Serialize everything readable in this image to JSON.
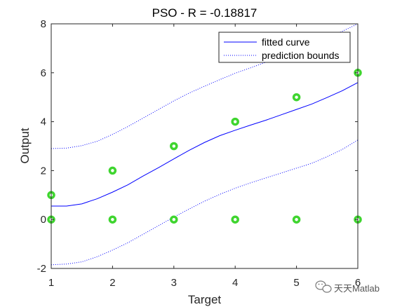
{
  "chart_data": {
    "type": "line",
    "title": "PSO - R =  -0.18817",
    "xlabel": "Target",
    "ylabel": "Output",
    "xlim": [
      1,
      6
    ],
    "ylim": [
      -2,
      8
    ],
    "xticks": [
      "1",
      "2",
      "3",
      "4",
      "5",
      "6"
    ],
    "yticks": [
      "-2",
      "0",
      "2",
      "4",
      "6",
      "8"
    ],
    "grid": false,
    "legend_position": "top-right",
    "series": [
      {
        "name": "fitted curve",
        "style": "solid",
        "color": "#0000ff",
        "x": [
          1.0,
          1.25,
          1.5,
          1.75,
          2.0,
          2.25,
          2.5,
          2.75,
          3.0,
          3.25,
          3.5,
          3.75,
          4.0,
          4.25,
          4.5,
          4.75,
          5.0,
          5.25,
          5.5,
          5.75,
          6.0
        ],
        "y": [
          0.55,
          0.55,
          0.64,
          0.85,
          1.12,
          1.42,
          1.78,
          2.12,
          2.48,
          2.83,
          3.15,
          3.43,
          3.65,
          3.86,
          4.06,
          4.28,
          4.5,
          4.72,
          4.99,
          5.27,
          5.6
        ]
      },
      {
        "name": "prediction bounds",
        "style": "dotted",
        "color": "#0000ff",
        "x": [
          1.0,
          1.25,
          1.5,
          1.75,
          2.0,
          2.25,
          2.5,
          2.75,
          3.0,
          3.25,
          3.5,
          3.75,
          4.0,
          4.25,
          4.5,
          4.75,
          5.0,
          5.25,
          5.5,
          5.75,
          6.0
        ],
        "y": [
          2.9,
          2.92,
          3.02,
          3.2,
          3.48,
          3.8,
          4.15,
          4.5,
          4.85,
          5.17,
          5.45,
          5.72,
          5.98,
          6.2,
          6.43,
          6.68,
          6.93,
          7.18,
          7.43,
          7.7,
          8.0
        ]
      },
      {
        "style": "dotted",
        "color": "#0000ff",
        "x": [
          1.0,
          1.25,
          1.5,
          1.75,
          2.0,
          2.25,
          2.5,
          2.75,
          3.0,
          3.25,
          3.5,
          3.75,
          4.0,
          4.25,
          4.5,
          4.75,
          5.0,
          5.25,
          5.5,
          5.75,
          6.0
        ],
        "y": [
          -1.85,
          -1.82,
          -1.73,
          -1.52,
          -1.25,
          -0.95,
          -0.6,
          -0.25,
          0.1,
          0.43,
          0.75,
          1.03,
          1.28,
          1.5,
          1.7,
          1.9,
          2.1,
          2.3,
          2.57,
          2.87,
          3.25
        ]
      }
    ],
    "points": {
      "color": "#3fd52f",
      "x": [
        1,
        1,
        2,
        2,
        3,
        3,
        4,
        4,
        5,
        5,
        6,
        6
      ],
      "y": [
        1,
        0,
        2,
        0,
        3,
        0,
        4,
        0,
        5,
        0,
        6,
        0
      ]
    }
  },
  "legend": {
    "items": [
      {
        "label": "fitted curve",
        "style": "solid"
      },
      {
        "label": "prediction bounds",
        "style": "dotted"
      }
    ]
  },
  "watermark": {
    "icon": "wechat-icon",
    "text": "天天Matlab"
  }
}
